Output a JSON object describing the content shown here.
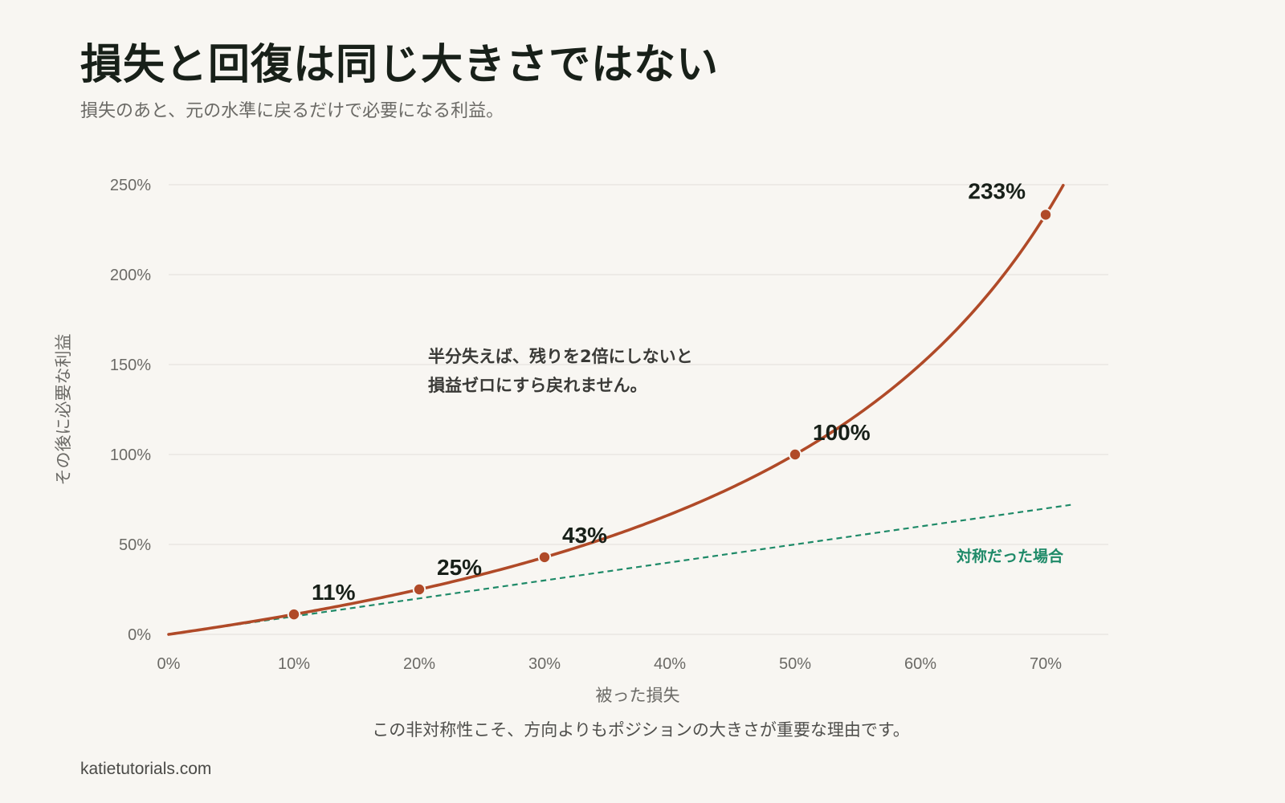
{
  "header": {
    "title": "損失と回復は同じ大きさではない",
    "subtitle": "損失のあと、元の水準に戻るだけで必要になる利益。"
  },
  "footer": {
    "source": "katietutorials.com"
  },
  "colors": {
    "background": "#f8f6f2",
    "recovery_curve": "#b04a28",
    "symmetric_line": "#1e8a68",
    "gridline": "#e6e3de",
    "tick_text": "#6b6a66",
    "title_text": "#182019"
  },
  "chart_data": {
    "type": "line",
    "title": "損失と回復は同じ大きさではない",
    "subtitle": "損失のあと、元の水準に戻るだけで必要になる利益。",
    "xlabel": "被った損失",
    "ylabel": "その後に必要な利益",
    "caption": "この非対称性こそ、方向よりもポジションの大きさが重要な理由です。",
    "xlim": [
      0,
      75
    ],
    "ylim": [
      0,
      250
    ],
    "x_ticks": [
      "0%",
      "10%",
      "20%",
      "30%",
      "40%",
      "50%",
      "60%",
      "70%"
    ],
    "y_ticks": [
      "0%",
      "50%",
      "100%",
      "150%",
      "200%",
      "250%"
    ],
    "grid": "horizontal",
    "series": [
      {
        "name": "",
        "style": "solid",
        "formula": "x / (100 - x)",
        "x_range": [
          0,
          71.4
        ]
      },
      {
        "name": "対称だった場合",
        "style": "dashed",
        "x": [
          0,
          72
        ],
        "y": [
          0,
          72
        ]
      }
    ],
    "highlight_points": [
      {
        "x": 10,
        "y": 11.1,
        "label": "11%"
      },
      {
        "x": 20,
        "y": 25,
        "label": "25%"
      },
      {
        "x": 30,
        "y": 42.9,
        "label": "43%"
      },
      {
        "x": 50,
        "y": 100,
        "label": "100%"
      },
      {
        "x": 70,
        "y": 233.3,
        "label": "233%"
      }
    ],
    "annotation": {
      "lines": [
        "半分失えば、残りを2倍にしないと",
        "損益ゼロにすら戻れません。"
      ]
    }
  }
}
